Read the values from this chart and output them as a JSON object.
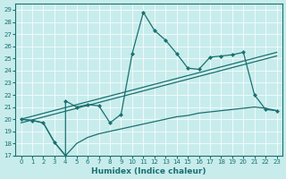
{
  "xlabel": "Humidex (Indice chaleur)",
  "bg_color": "#c8ecec",
  "line_color": "#1a7070",
  "xlim": [
    -0.5,
    23.5
  ],
  "ylim": [
    17,
    29.5
  ],
  "xticks": [
    0,
    1,
    2,
    3,
    4,
    5,
    6,
    7,
    8,
    9,
    10,
    11,
    12,
    13,
    14,
    15,
    16,
    17,
    18,
    19,
    20,
    21,
    22,
    23
  ],
  "yticks": [
    17,
    18,
    19,
    20,
    21,
    22,
    23,
    24,
    25,
    26,
    27,
    28,
    29
  ],
  "series_main": [
    0,
    20,
    1,
    19.9,
    2,
    19.7,
    3,
    18.1,
    4,
    17.0,
    4,
    21.5,
    5,
    21.0,
    6,
    21.2,
    7,
    21.1,
    8,
    19.7,
    9,
    20.4,
    10,
    25.4,
    11,
    28.8,
    12,
    27.3,
    13,
    26.5,
    14,
    25.4,
    15,
    24.2,
    16,
    24.1,
    17,
    25.1,
    18,
    25.2,
    19,
    25.3,
    20,
    25.5,
    21,
    22.0,
    22,
    20.8,
    23,
    20.7
  ],
  "series_upper": [
    0,
    20,
    23,
    25.5
  ],
  "series_upper2": [
    0,
    19.7,
    23,
    25.2
  ],
  "series_lower": [
    0,
    20,
    1,
    19.9,
    2,
    19.7,
    3,
    18.1,
    4,
    17.0,
    5,
    18.0,
    6,
    18.5,
    7,
    18.8,
    8,
    19.0,
    9,
    19.2,
    10,
    19.4,
    11,
    19.6,
    12,
    19.8,
    13,
    20.0,
    14,
    20.2,
    15,
    20.3,
    16,
    20.5,
    17,
    20.6,
    18,
    20.7,
    19,
    20.8,
    20,
    20.9,
    21,
    21.0,
    22,
    20.9,
    23,
    20.7
  ]
}
